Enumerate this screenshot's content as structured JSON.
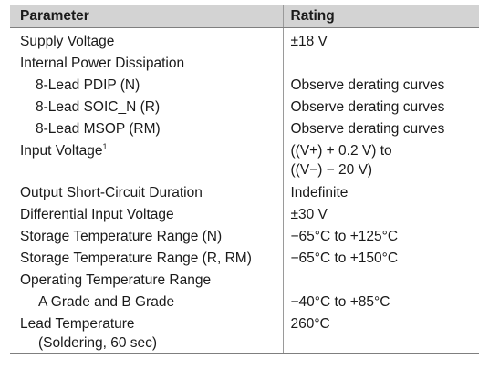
{
  "table": {
    "headers": {
      "parameter": "Parameter",
      "rating": "Rating"
    },
    "rows": [
      {
        "parameter": "Supply Voltage",
        "rating": "±18 V"
      },
      {
        "parameter": "Internal Power Dissipation",
        "rating": ""
      },
      {
        "parameter": "8-Lead PDIP (N)",
        "rating": "Observe derating curves"
      },
      {
        "parameter": "8-Lead SOIC_N (R)",
        "rating": "Observe derating curves"
      },
      {
        "parameter": "8-Lead MSOP (RM)",
        "rating": "Observe derating curves"
      },
      {
        "parameter": "Input Voltage",
        "footnote": "1",
        "rating_line1": "((V+) + 0.2 V) to",
        "rating_line2": "((V−) − 20 V)"
      },
      {
        "parameter": "Output Short-Circuit Duration",
        "rating": "Indefinite"
      },
      {
        "parameter": "Differential Input Voltage",
        "rating": "±30 V"
      },
      {
        "parameter": "Storage Temperature Range (N)",
        "rating": "−65°C to +125°C"
      },
      {
        "parameter": "Storage Temperature Range (R, RM)",
        "rating": "−65°C to +150°C"
      },
      {
        "parameter": "Operating Temperature Range",
        "rating": ""
      },
      {
        "parameter": "A Grade and B Grade",
        "rating": "−40°C to +85°C"
      },
      {
        "parameter_line1": "Lead Temperature",
        "parameter_line2": "(Soldering, 60 sec)",
        "rating": "260°C"
      }
    ]
  }
}
